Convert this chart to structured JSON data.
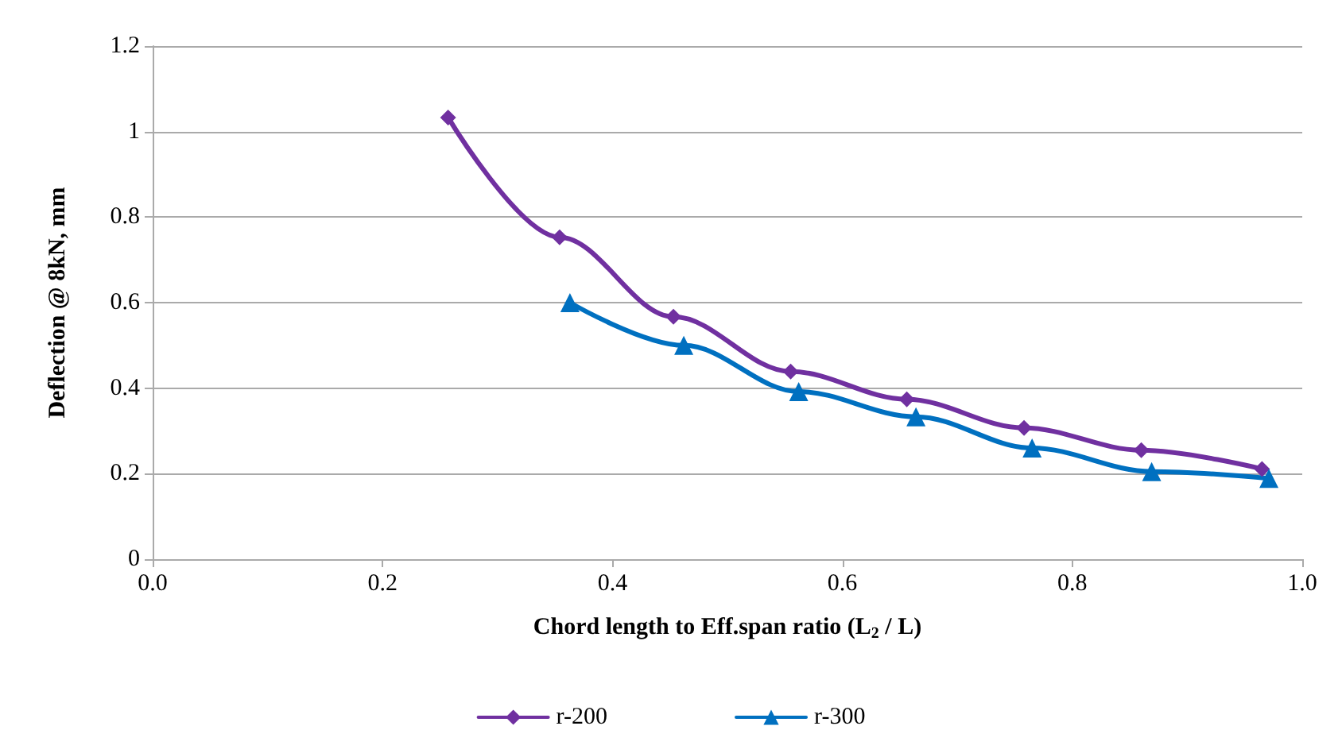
{
  "chart_data": {
    "type": "line",
    "xlabel": "Chord length to Eff.span ratio (L$_{2}$ / L)",
    "ylabel": "Deflection @ 8kN, mm",
    "series": [
      {
        "name": "r-200",
        "color": "#7030a0",
        "marker": "diamond",
        "x": [
          0.257,
          0.354,
          0.453,
          0.555,
          0.656,
          0.758,
          0.86,
          0.965
        ],
        "values": [
          1.033,
          0.753,
          0.567,
          0.439,
          0.374,
          0.307,
          0.255,
          0.211
        ]
      },
      {
        "name": "r-300",
        "color": "#0070c0",
        "marker": "triangle",
        "x": [
          0.363,
          0.462,
          0.562,
          0.664,
          0.765,
          0.869,
          0.971
        ],
        "values": [
          0.6,
          0.5,
          0.392,
          0.333,
          0.26,
          0.205,
          0.189
        ]
      }
    ],
    "xlim": [
      0,
      1
    ],
    "xticks": [
      {
        "value": 0,
        "label": "0.0"
      },
      {
        "value": 0.2,
        "label": "0.2"
      },
      {
        "value": 0.4,
        "label": "0.4"
      },
      {
        "value": 0.6,
        "label": "0.6"
      },
      {
        "value": 0.8,
        "label": "0.8"
      },
      {
        "value": 1,
        "label": "1.0"
      }
    ],
    "ylim": [
      0,
      1.2
    ],
    "yticks": [
      0,
      0.2,
      0.4,
      0.6,
      0.8,
      1,
      1.2
    ],
    "grid": "y",
    "legend": "bottom",
    "line_style": "solid"
  }
}
